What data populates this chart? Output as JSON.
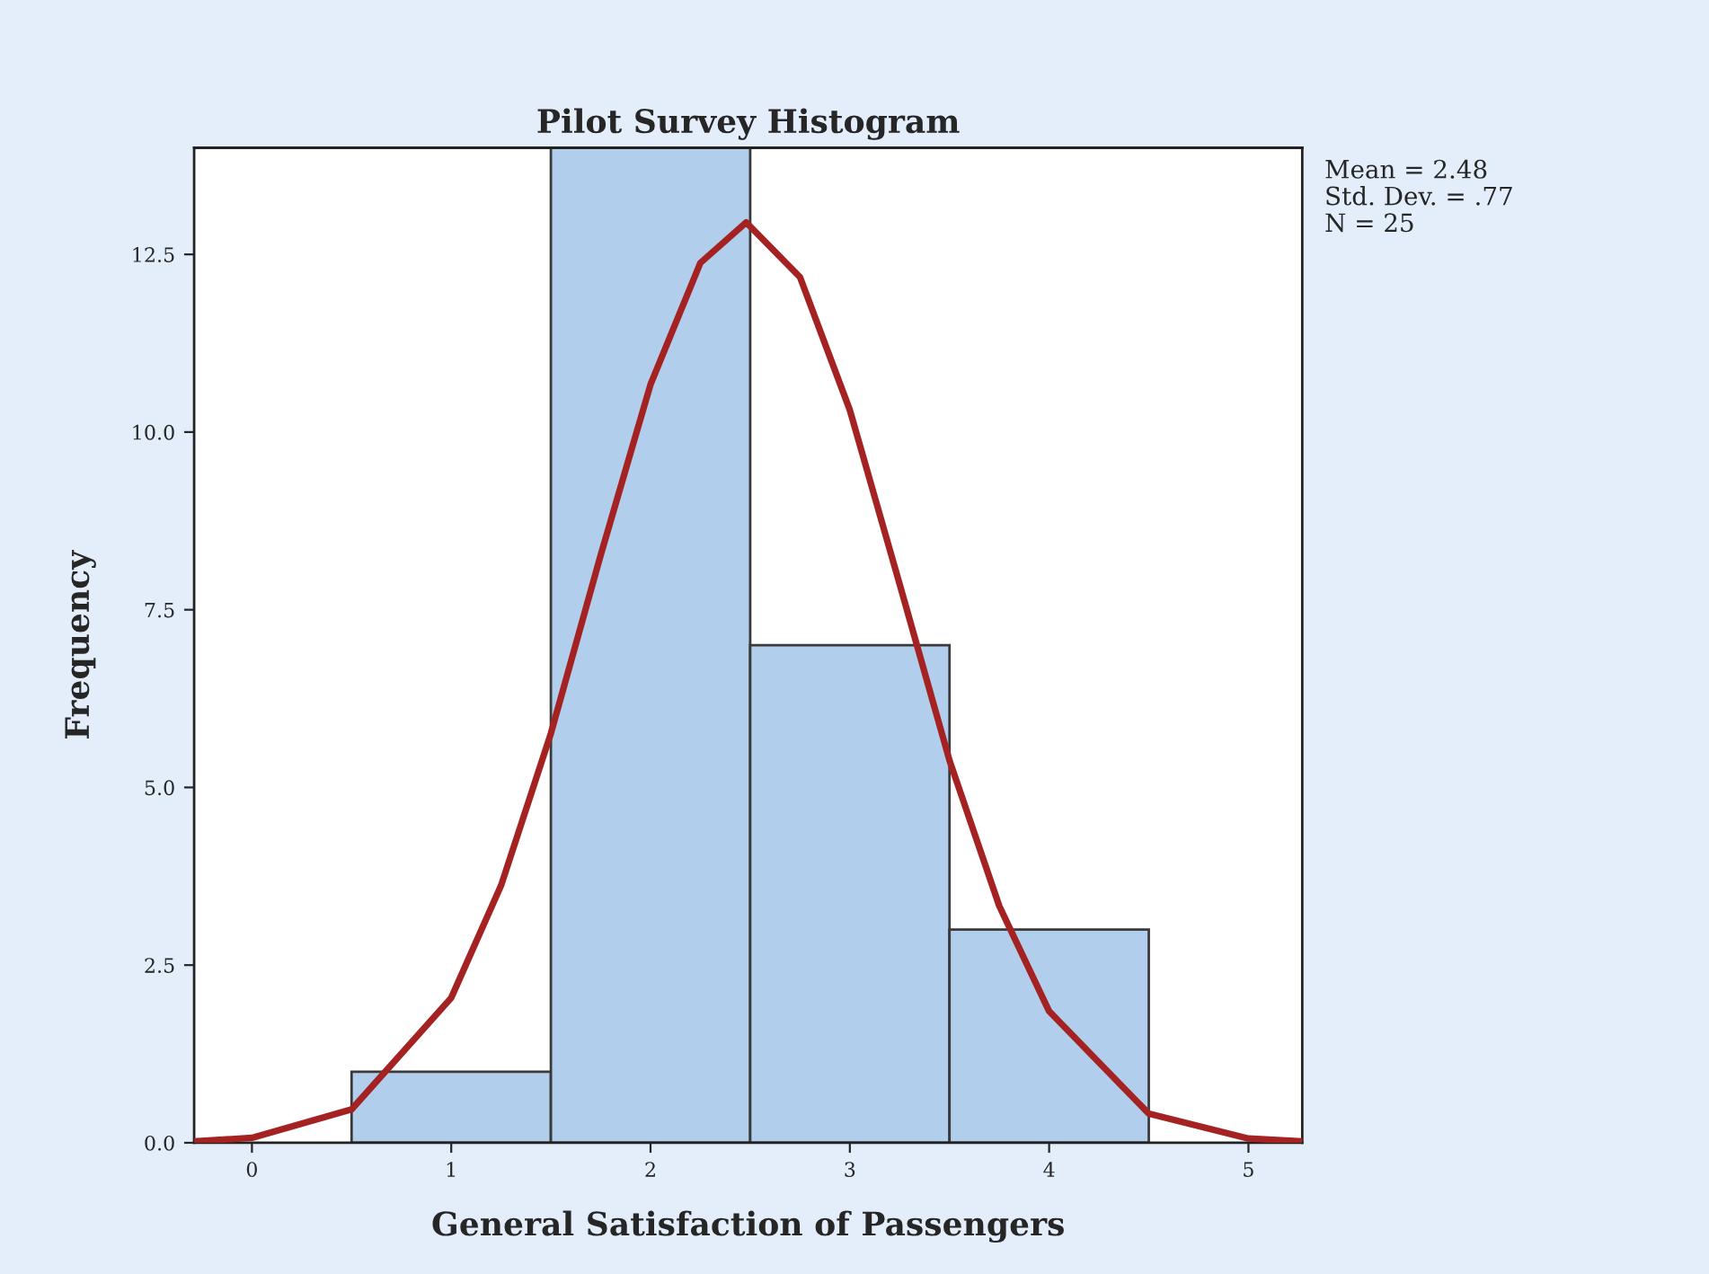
{
  "chart_data": {
    "type": "histogram",
    "title": "Pilot Survey Histogram",
    "xlabel": "General Satisfaction of Passengers",
    "ylabel": "Frequency",
    "bins": [
      0.5,
      1.5,
      2.5,
      3.5,
      4.5
    ],
    "values": [
      1,
      14,
      7,
      3
    ],
    "color": "#b1cfec",
    "series": [
      {
        "type": "line",
        "color": "#a52222",
        "x": [
          -0.29,
          0,
          0.5,
          1.0,
          1.25,
          1.5,
          1.75,
          2.0,
          2.25,
          2.48,
          2.75,
          3.0,
          3.25,
          3.5,
          3.75,
          4.0,
          4.5,
          5.0,
          5.27
        ],
        "values": [
          0.02,
          0.07,
          0.47,
          2.04,
          3.62,
          5.76,
          8.27,
          10.67,
          12.38,
          12.95,
          12.18,
          10.31,
          7.86,
          5.38,
          3.33,
          1.85,
          0.41,
          0.06,
          0.02
        ]
      }
    ],
    "xlim": [
      -0.29,
      5.27
    ],
    "xticks": [
      0,
      1,
      2,
      3,
      4,
      5
    ],
    "ylim": [
      0,
      14.0
    ],
    "yticks": [
      {
        "value": 0,
        "label": "0.0"
      },
      {
        "value": 2.5,
        "label": "2.5"
      },
      {
        "value": 5,
        "label": "5.0"
      },
      {
        "value": 7.5,
        "label": "7.5"
      },
      {
        "value": 10,
        "label": "10.0"
      },
      {
        "value": 12.5,
        "label": "12.5"
      }
    ],
    "annotations": [
      "Mean = 2.48",
      "Std. Dev. = .77",
      "N = 25"
    ]
  }
}
